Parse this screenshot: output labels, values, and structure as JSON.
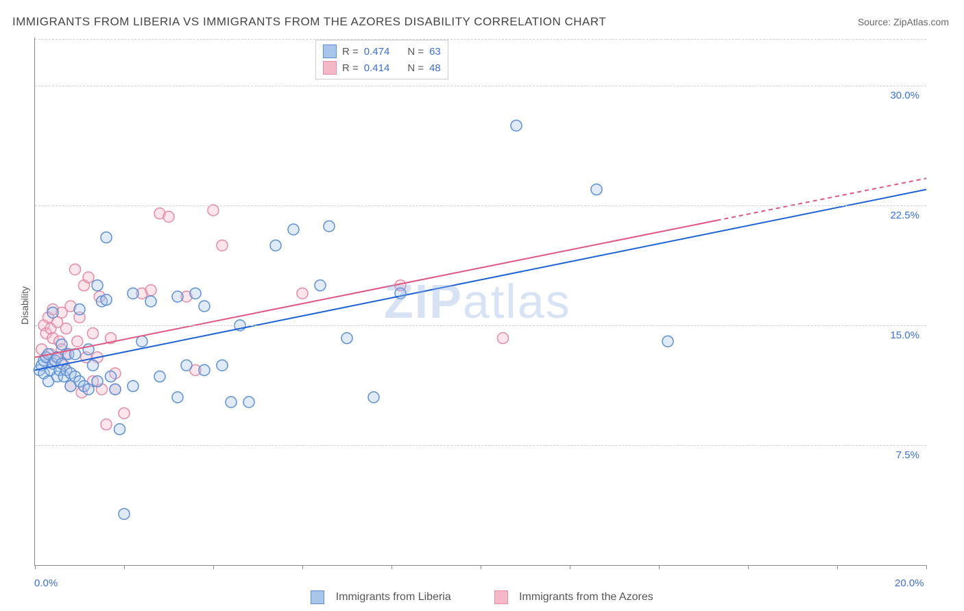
{
  "title": "IMMIGRANTS FROM LIBERIA VS IMMIGRANTS FROM THE AZORES DISABILITY CORRELATION CHART",
  "source_label": "Source: ",
  "source_name": "ZipAtlas.com",
  "ylabel": "Disability",
  "watermark": "ZIPatlas",
  "chart": {
    "type": "scatter",
    "xlim": [
      0,
      20
    ],
    "ylim": [
      0,
      33
    ],
    "xtick_positions": [
      0,
      2,
      4,
      6,
      8,
      10,
      12,
      14,
      16,
      18,
      20
    ],
    "x_labeled_ticks": {
      "0": "0.0%",
      "20": "20.0%"
    },
    "ytick_gridlines": [
      7.5,
      15.0,
      22.5,
      30.0
    ],
    "ytick_labels": {
      "7.5": "7.5%",
      "15.0": "15.0%",
      "22.5": "22.5%",
      "30.0": "30.0%"
    },
    "background_color": "#ffffff",
    "grid_color": "#d0d0d0",
    "axis_color": "#888888",
    "marker_radius": 8,
    "marker_stroke_width": 1.5,
    "marker_fill_opacity": 0.35,
    "y_tick_label_color": "#3b6fd6",
    "x_tick_label_color": "#3b6fd6",
    "title_color": "#444444",
    "title_fontsize": 17,
    "tick_fontsize": 15,
    "ylabel_fontsize": 14
  },
  "series": {
    "liberia": {
      "label": "Immigrants from Liberia",
      "stroke": "#5a8fd6",
      "fill": "#a8c5ea",
      "trend_color": "#1c62d6",
      "trend_width": 2,
      "trend_dash_after_x": 20,
      "R": "0.474",
      "N": "63",
      "trend": {
        "x1": 0,
        "y1": 12.2,
        "x2": 20,
        "y2": 23.5
      },
      "points": [
        [
          0.1,
          12.2
        ],
        [
          0.15,
          12.5
        ],
        [
          0.2,
          12.8
        ],
        [
          0.2,
          12.0
        ],
        [
          0.25,
          13.0
        ],
        [
          0.3,
          13.2
        ],
        [
          0.3,
          11.5
        ],
        [
          0.35,
          12.2
        ],
        [
          0.4,
          12.6
        ],
        [
          0.4,
          15.8
        ],
        [
          0.45,
          12.8
        ],
        [
          0.5,
          13.0
        ],
        [
          0.5,
          11.8
        ],
        [
          0.55,
          12.2
        ],
        [
          0.6,
          13.8
        ],
        [
          0.6,
          12.6
        ],
        [
          0.65,
          11.8
        ],
        [
          0.7,
          12.2
        ],
        [
          0.75,
          13.2
        ],
        [
          0.8,
          12.0
        ],
        [
          0.8,
          11.2
        ],
        [
          0.9,
          11.8
        ],
        [
          0.9,
          13.2
        ],
        [
          1.0,
          11.5
        ],
        [
          1.0,
          16.0
        ],
        [
          1.1,
          11.2
        ],
        [
          1.2,
          13.5
        ],
        [
          1.2,
          11.0
        ],
        [
          1.3,
          12.5
        ],
        [
          1.4,
          11.5
        ],
        [
          1.4,
          17.5
        ],
        [
          1.5,
          16.5
        ],
        [
          1.6,
          20.5
        ],
        [
          1.7,
          11.8
        ],
        [
          1.8,
          11.0
        ],
        [
          1.9,
          8.5
        ],
        [
          2.0,
          3.2
        ],
        [
          2.2,
          11.2
        ],
        [
          2.2,
          17.0
        ],
        [
          2.4,
          14.0
        ],
        [
          2.6,
          16.5
        ],
        [
          2.8,
          11.8
        ],
        [
          3.2,
          10.5
        ],
        [
          3.2,
          16.8
        ],
        [
          3.4,
          12.5
        ],
        [
          3.6,
          17.0
        ],
        [
          3.8,
          16.2
        ],
        [
          3.8,
          12.2
        ],
        [
          4.2,
          12.5
        ],
        [
          4.4,
          10.2
        ],
        [
          4.6,
          15.0
        ],
        [
          4.8,
          10.2
        ],
        [
          5.4,
          20.0
        ],
        [
          5.8,
          21.0
        ],
        [
          6.4,
          17.5
        ],
        [
          6.6,
          21.2
        ],
        [
          7.0,
          14.2
        ],
        [
          7.6,
          10.5
        ],
        [
          8.2,
          17.0
        ],
        [
          10.8,
          27.5
        ],
        [
          12.6,
          23.5
        ],
        [
          14.2,
          14.0
        ],
        [
          1.6,
          16.6
        ]
      ]
    },
    "azores": {
      "label": "Immigrants from the Azores",
      "stroke": "#e68aa6",
      "fill": "#f5b8c9",
      "trend_color": "#e05680",
      "trend_width": 2,
      "trend_dash_after_x": 15.3,
      "R": "0.414",
      "N": "48",
      "trend": {
        "x1": 0,
        "y1": 13.0,
        "x2": 20,
        "y2": 24.2
      },
      "points": [
        [
          0.15,
          13.5
        ],
        [
          0.2,
          15.0
        ],
        [
          0.25,
          13.0
        ],
        [
          0.25,
          14.5
        ],
        [
          0.3,
          15.5
        ],
        [
          0.35,
          14.8
        ],
        [
          0.35,
          13.2
        ],
        [
          0.4,
          16.0
        ],
        [
          0.4,
          14.2
        ],
        [
          0.45,
          12.8
        ],
        [
          0.5,
          15.2
        ],
        [
          0.5,
          13.0
        ],
        [
          0.55,
          14.0
        ],
        [
          0.6,
          13.5
        ],
        [
          0.6,
          15.8
        ],
        [
          0.65,
          12.5
        ],
        [
          0.7,
          14.8
        ],
        [
          0.7,
          13.2
        ],
        [
          0.8,
          16.2
        ],
        [
          0.8,
          11.2
        ],
        [
          0.9,
          18.5
        ],
        [
          0.95,
          14.0
        ],
        [
          1.0,
          15.5
        ],
        [
          1.05,
          10.8
        ],
        [
          1.1,
          17.5
        ],
        [
          1.15,
          13.0
        ],
        [
          1.2,
          18.0
        ],
        [
          1.3,
          11.5
        ],
        [
          1.3,
          14.5
        ],
        [
          1.4,
          13.0
        ],
        [
          1.45,
          16.8
        ],
        [
          1.5,
          11.0
        ],
        [
          1.6,
          8.8
        ],
        [
          1.7,
          14.2
        ],
        [
          1.8,
          12.0
        ],
        [
          1.8,
          11.0
        ],
        [
          2.0,
          9.5
        ],
        [
          2.4,
          17.0
        ],
        [
          2.6,
          17.2
        ],
        [
          2.8,
          22.0
        ],
        [
          3.0,
          21.8
        ],
        [
          3.4,
          16.8
        ],
        [
          3.6,
          12.2
        ],
        [
          4.0,
          22.2
        ],
        [
          4.2,
          20.0
        ],
        [
          6.0,
          17.0
        ],
        [
          8.2,
          17.5
        ],
        [
          10.5,
          14.2
        ]
      ]
    }
  },
  "legend_top": {
    "R_label": "R =",
    "N_label": "N ="
  }
}
